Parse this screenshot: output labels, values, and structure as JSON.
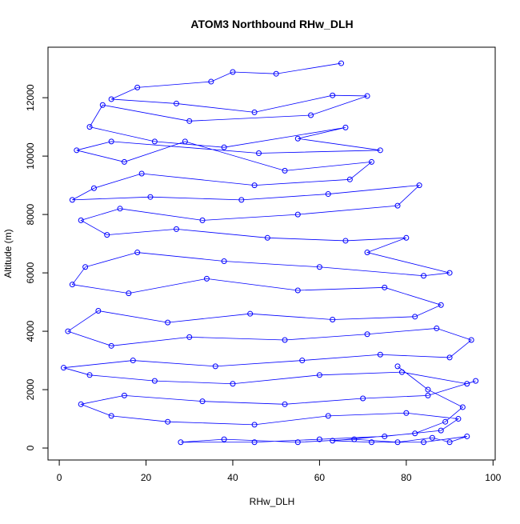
{
  "chart_data": {
    "type": "line",
    "title": "ATOM3 Northbound RHw_DLH",
    "x_label": "RHw_DLH",
    "y_label": "Altitude (m)",
    "xlim": [
      -2.6,
      100.5
    ],
    "ylim": [
      -410,
      13730
    ],
    "xticks": [
      0,
      20,
      40,
      60,
      80,
      100
    ],
    "yticks": [
      0,
      2000,
      4000,
      6000,
      8000,
      10000,
      12000
    ],
    "markers": true,
    "x": [
      65,
      50,
      40,
      35,
      18,
      12,
      27,
      45,
      63,
      71,
      58,
      30,
      10,
      7,
      22,
      38,
      66,
      55,
      74,
      46,
      12,
      4,
      15,
      29,
      52,
      72,
      67,
      45,
      19,
      8,
      3,
      21,
      42,
      62,
      83,
      78,
      55,
      33,
      14,
      5,
      11,
      27,
      48,
      66,
      80,
      71,
      90,
      84,
      60,
      38,
      18,
      6,
      3,
      16,
      34,
      55,
      75,
      88,
      82,
      63,
      44,
      25,
      9,
      2,
      12,
      30,
      52,
      71,
      87,
      95,
      90,
      74,
      56,
      36,
      17,
      1,
      7,
      22,
      40,
      60,
      79,
      94,
      96,
      85,
      70,
      52,
      33,
      15,
      5,
      12,
      25,
      45,
      62,
      80,
      92,
      88,
      75,
      60,
      45,
      28,
      38,
      55,
      68,
      78,
      86,
      90,
      94,
      84,
      72,
      63,
      82,
      89,
      93,
      85,
      78
    ],
    "series": [
      {
        "name": "RHw_DLH",
        "color": "#0000ff",
        "values": [
          13180,
          12820,
          12880,
          12550,
          12350,
          11950,
          11800,
          11500,
          12080,
          12060,
          11400,
          11200,
          11750,
          11000,
          10500,
          10300,
          10980,
          10600,
          10200,
          10100,
          10500,
          10200,
          9800,
          10500,
          9500,
          9800,
          9200,
          9000,
          9400,
          8900,
          8500,
          8600,
          8500,
          8700,
          9000,
          8300,
          8000,
          7800,
          8200,
          7800,
          7300,
          7500,
          7200,
          7100,
          7200,
          6700,
          6000,
          5900,
          6200,
          6400,
          6700,
          6200,
          5600,
          5300,
          5800,
          5400,
          5500,
          4900,
          4500,
          4400,
          4600,
          4300,
          4700,
          4000,
          3500,
          3800,
          3700,
          3900,
          4100,
          3700,
          3100,
          3200,
          3000,
          2800,
          3000,
          2750,
          2500,
          2300,
          2200,
          2500,
          2600,
          2200,
          2300,
          1800,
          1700,
          1500,
          1600,
          1800,
          1500,
          1100,
          900,
          800,
          1100,
          1200,
          1000,
          600,
          400,
          300,
          200,
          200,
          300,
          200,
          300,
          200,
          350,
          200,
          400,
          200,
          200,
          250,
          500,
          900,
          1400,
          2000,
          2800
        ]
      }
    ]
  }
}
